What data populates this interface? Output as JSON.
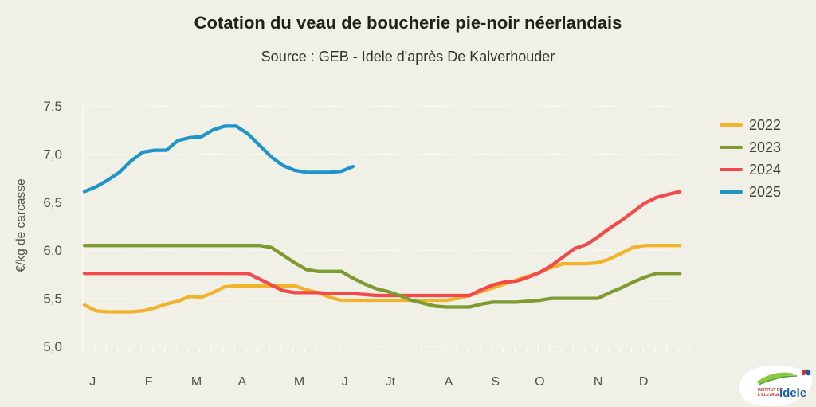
{
  "title": "Cotation du veau de boucherie pie-noir néerlandais",
  "subtitle": "Source : GEB - Idele d'après De Kalverhouder",
  "ylabel": "€/kg de carcasse",
  "logo": {
    "institute": "INSTITUT DE L'ÉLEVAGE",
    "name": "idele"
  },
  "colors": {
    "background": "#f0f0e6",
    "gridline": "#ffffff",
    "axis_text": "#50504a"
  },
  "chart_data": {
    "type": "line",
    "x_unit": "week",
    "months": [
      "J",
      "F",
      "M",
      "A",
      "M",
      "J",
      "Jt",
      "A",
      "S",
      "O",
      "N",
      "D"
    ],
    "month_week_positions": [
      1.7,
      6.5,
      10.6,
      14.5,
      19.4,
      23.3,
      27.2,
      32.2,
      36.2,
      40.0,
      45.0,
      48.9
    ],
    "ylim": [
      5.0,
      7.5
    ],
    "yticks": [
      7.5,
      7.0,
      6.5,
      6.0,
      5.5,
      5.0
    ],
    "ytick_labels": [
      "7,5",
      "7,0",
      "6,5",
      "6,0",
      "5,5",
      "5,0"
    ],
    "grid": "horizontal dashed white, weekly ticks on bottom axis",
    "legend_position": "right",
    "series": [
      {
        "name": "2022",
        "color": "#f2b32c",
        "values": [
          5.43,
          5.37,
          5.36,
          5.36,
          5.36,
          5.37,
          5.4,
          5.44,
          5.47,
          5.52,
          5.51,
          5.56,
          5.62,
          5.63,
          5.63,
          5.63,
          5.63,
          5.63,
          5.63,
          5.59,
          5.56,
          5.51,
          5.48,
          5.48,
          5.48,
          5.48,
          5.48,
          5.48,
          5.48,
          5.48,
          5.48,
          5.48,
          5.5,
          5.53,
          5.57,
          5.61,
          5.65,
          5.69,
          5.73,
          5.77,
          5.82,
          5.86,
          5.86,
          5.86,
          5.87,
          5.91,
          5.97,
          6.03,
          6.05,
          6.05,
          6.05,
          6.05
        ]
      },
      {
        "name": "2023",
        "color": "#7d9b31",
        "values": [
          6.05,
          6.05,
          6.05,
          6.05,
          6.05,
          6.05,
          6.05,
          6.05,
          6.05,
          6.05,
          6.05,
          6.05,
          6.05,
          6.05,
          6.05,
          6.05,
          6.03,
          5.95,
          5.87,
          5.8,
          5.78,
          5.78,
          5.78,
          5.71,
          5.65,
          5.6,
          5.57,
          5.53,
          5.48,
          5.45,
          5.42,
          5.41,
          5.41,
          5.41,
          5.44,
          5.46,
          5.46,
          5.46,
          5.47,
          5.48,
          5.5,
          5.5,
          5.5,
          5.5,
          5.5,
          5.56,
          5.61,
          5.67,
          5.72,
          5.76,
          5.76,
          5.76
        ]
      },
      {
        "name": "2024",
        "color": "#f24a4a",
        "values": [
          5.76,
          5.76,
          5.76,
          5.76,
          5.76,
          5.76,
          5.76,
          5.76,
          5.76,
          5.76,
          5.76,
          5.76,
          5.76,
          5.76,
          5.76,
          5.7,
          5.64,
          5.58,
          5.56,
          5.56,
          5.56,
          5.55,
          5.55,
          5.55,
          5.54,
          5.53,
          5.53,
          5.53,
          5.53,
          5.53,
          5.53,
          5.53,
          5.53,
          5.53,
          5.59,
          5.64,
          5.67,
          5.68,
          5.72,
          5.77,
          5.84,
          5.93,
          6.02,
          6.06,
          6.14,
          6.23,
          6.31,
          6.4,
          6.49,
          6.55,
          6.58,
          6.61
        ]
      },
      {
        "name": "2025",
        "color": "#1e94c8",
        "values": [
          6.61,
          6.66,
          6.73,
          6.81,
          6.93,
          7.02,
          7.04,
          7.04,
          7.14,
          7.17,
          7.18,
          7.25,
          7.29,
          7.29,
          7.21,
          7.09,
          6.97,
          6.88,
          6.83,
          6.81,
          6.81,
          6.81,
          6.82,
          6.87
        ]
      }
    ]
  }
}
